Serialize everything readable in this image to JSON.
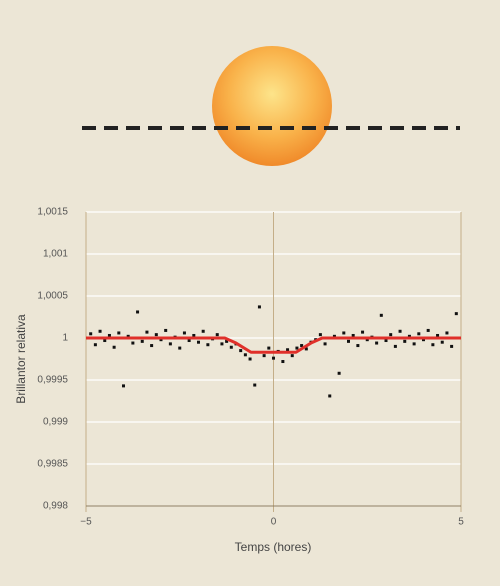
{
  "chart_data": {
    "type": "scatter",
    "xlabel": "Temps (hores)",
    "ylabel": "Brillantor relativa",
    "xlim": [
      -5,
      5
    ],
    "xticks": [
      {
        "value": -5,
        "label": "−5"
      },
      0,
      5
    ],
    "ylim": [
      0.998,
      1.0015
    ],
    "yticks": [
      {
        "value": 0.998,
        "label": "0,998"
      },
      {
        "value": 0.9985,
        "label": "0,9985"
      },
      {
        "value": 0.999,
        "label": "0,999"
      },
      {
        "value": 0.9995,
        "label": "0,9995"
      },
      1,
      {
        "value": 1.0005,
        "label": "1,0005"
      },
      {
        "value": 1.001,
        "label": "1,001"
      },
      {
        "value": 1.0015,
        "label": "1,0015"
      }
    ],
    "grid": true,
    "series": [
      {
        "style": "points",
        "color": "#111111",
        "x": [
          -4.875,
          -4.75,
          -4.625,
          -4.5,
          -4.375,
          -4.25,
          -4.125,
          -4,
          -3.875,
          -3.75,
          -3.625,
          -3.5,
          -3.375,
          -3.25,
          -3.125,
          -3,
          -2.875,
          -2.75,
          -2.625,
          -2.5,
          -2.375,
          -2.25,
          -2.125,
          -2,
          -1.875,
          -1.75,
          -1.625,
          -1.5,
          -1.375,
          -1.25,
          -1.125,
          -1,
          -0.875,
          -0.75,
          -0.625,
          -0.5,
          -0.375,
          -0.25,
          -0.125,
          0,
          0.125,
          0.25,
          0.375,
          0.5,
          0.625,
          0.75,
          0.875,
          1,
          1.125,
          1.25,
          1.375,
          1.5,
          1.625,
          1.75,
          1.875,
          2,
          2.125,
          2.25,
          2.375,
          2.5,
          2.625,
          2.75,
          2.875,
          3,
          3.125,
          3.25,
          3.375,
          3.5,
          3.625,
          3.75,
          3.875,
          4,
          4.125,
          4.25,
          4.375,
          4.5,
          4.625,
          4.75,
          4.875
        ],
        "values": [
          1.00005,
          0.99992,
          1.00008,
          0.99997,
          1.00003,
          0.99989,
          1.00006,
          0.99943,
          1.00002,
          0.99994,
          1.00031,
          0.99996,
          1.00007,
          0.99991,
          1.00004,
          0.99998,
          1.00009,
          0.99993,
          1.00001,
          0.99988,
          1.00006,
          0.99997,
          1.00003,
          0.99995,
          1.00008,
          0.99992,
          0.99999,
          1.00004,
          0.99993,
          0.99996,
          0.99989,
          0.99993,
          0.99985,
          0.9998,
          0.99975,
          0.99944,
          1.00037,
          0.99979,
          0.99988,
          0.99976,
          0.99984,
          0.99972,
          0.99986,
          0.99979,
          0.99988,
          0.99991,
          0.99987,
          0.99995,
          0.99998,
          1.00004,
          0.99993,
          0.99931,
          1.00002,
          0.99958,
          1.00006,
          0.99996,
          1.00003,
          0.99991,
          1.00007,
          0.99998,
          1.00001,
          0.99994,
          1.00027,
          0.99997,
          1.00004,
          0.9999,
          1.00008,
          0.99996,
          1.00002,
          0.99993,
          1.00005,
          0.99998,
          1.00009,
          0.99992,
          1.00003,
          0.99995,
          1.00006,
          0.9999,
          1.00029
        ]
      },
      {
        "style": "line",
        "color": "#e0302a",
        "x": [
          -5,
          -1.3,
          -1,
          -0.6,
          0.6,
          1,
          1.3,
          5
        ],
        "values": [
          1,
          1,
          0.99994,
          0.99983,
          0.99983,
          0.99994,
          1,
          1
        ]
      }
    ]
  }
}
